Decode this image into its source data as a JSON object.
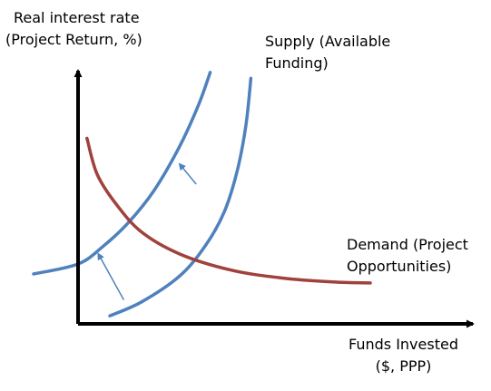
{
  "chart_data": {
    "type": "line",
    "title": "",
    "ylabel_lines": [
      "Real interest rate",
      "(Project Return, %)"
    ],
    "xlabel_lines": [
      "Funds Invested",
      "($, PPP)"
    ],
    "axis_ticks": "none",
    "grid": false,
    "series": [
      {
        "name": "Supply (Available Funding)",
        "name_lines": [
          "Supply (Available",
          "Funding)"
        ],
        "role": "supply-original",
        "color": "#4F81BD",
        "points": [
          [
            -3.5,
            2.5
          ],
          [
            0.0,
            3.0
          ],
          [
            2.0,
            3.9
          ],
          [
            4.0,
            5.1
          ],
          [
            6.0,
            6.7
          ],
          [
            8.0,
            8.9
          ],
          [
            9.5,
            11.0
          ],
          [
            10.4,
            12.6
          ]
        ]
      },
      {
        "name": "",
        "role": "supply-shifted",
        "color": "#4F81BD",
        "points": [
          [
            2.5,
            0.4
          ],
          [
            5.0,
            1.1
          ],
          [
            8.0,
            2.4
          ],
          [
            10.0,
            3.9
          ],
          [
            11.5,
            5.6
          ],
          [
            12.5,
            7.6
          ],
          [
            13.2,
            9.9
          ],
          [
            13.6,
            12.3
          ]
        ]
      },
      {
        "name": "Demand (Project Opportunities)",
        "name_lines": [
          "Demand (Project",
          "Opportunities)"
        ],
        "role": "demand",
        "color": "#A0413D",
        "points": [
          [
            0.7,
            9.3
          ],
          [
            1.5,
            7.5
          ],
          [
            3.0,
            6.0
          ],
          [
            5.0,
            4.6
          ],
          [
            8.0,
            3.5
          ],
          [
            12.0,
            2.7
          ],
          [
            16.0,
            2.3
          ],
          [
            20.0,
            2.1
          ],
          [
            23.0,
            2.05
          ]
        ]
      }
    ],
    "arrows": [
      {
        "from": [
          3.6,
          1.2
        ],
        "to": [
          1.6,
          3.5
        ],
        "color": "#4F81BD"
      },
      {
        "from": [
          9.3,
          7.0
        ],
        "to": [
          8.0,
          8.0
        ],
        "color": "#4F81BD"
      }
    ],
    "axis_color": "#000000"
  }
}
